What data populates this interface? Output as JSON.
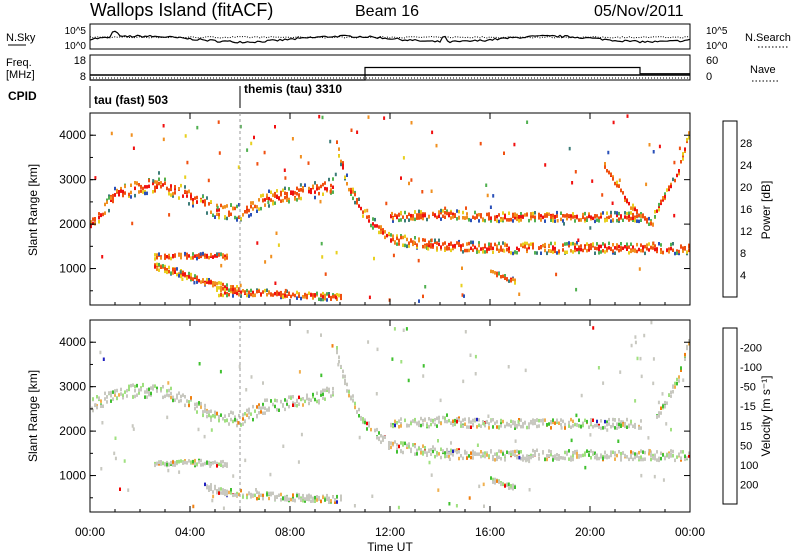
{
  "header": {
    "station": "Wallops Island (fitACF)",
    "beam": "Beam 16",
    "date": "05/Nov/2011"
  },
  "top_panel": {
    "left_label": "N.Sky",
    "right_label": "N.Search",
    "left_ticks": [
      "10^5",
      "10^0"
    ],
    "right_ticks": [
      "10^5",
      "10^0"
    ]
  },
  "freq_panel": {
    "left_label_line1": "Freq.",
    "left_label_line2": "[MHz]",
    "right_label": "Nave",
    "left_ticks": [
      "18",
      "8"
    ],
    "right_ticks": [
      "60",
      "0"
    ],
    "freq_mhz_level": 10,
    "nave_steps": [
      {
        "from_hour": 0.0,
        "to_hour": 11.0,
        "nave": 0
      },
      {
        "from_hour": 11.0,
        "to_hour": 22.0,
        "nave": 30
      },
      {
        "from_hour": 22.0,
        "to_hour": 24.0,
        "nave": 15
      }
    ]
  },
  "cpid": {
    "label": "CPID",
    "modes": [
      {
        "name": "tau (fast) 503",
        "start_hour": 0.0
      },
      {
        "name": "themis (tau) 3310",
        "start_hour": 6.0
      }
    ]
  },
  "chart_data": [
    {
      "type": "heatmap",
      "title": "Power",
      "ylabel": "Slant Range [km]",
      "yticks": [
        "1000",
        "2000",
        "3000",
        "4000"
      ],
      "ylim": [
        180,
        4500
      ],
      "xlim": [
        0,
        24
      ],
      "colorbar_label": "Power [dB]",
      "colorbar_ticks": [
        "4",
        "8",
        "12",
        "16",
        "20",
        "24",
        "28"
      ],
      "colors": [
        "#1010f0",
        "#2a50b8",
        "#3c7c78",
        "#50b050",
        "#e8d020",
        "#f09020",
        "#f05010",
        "#f01010"
      ],
      "echo_bands": [
        {
          "x": [
            0.0,
            1.0,
            2.0,
            3.0,
            4.0,
            5.0,
            6.0,
            7.0,
            8.0,
            9.0,
            9.7
          ],
          "y": [
            2000,
            2700,
            2900,
            2900,
            2650,
            2350,
            2300,
            2600,
            2700,
            2800,
            2900
          ],
          "width": 350
        },
        {
          "x": [
            2.5,
            3.5,
            4.5,
            5.5
          ],
          "y": [
            1300,
            1320,
            1320,
            1300
          ],
          "width": 120
        },
        {
          "x": [
            2.5,
            3.5,
            4.5,
            5.5,
            6.0
          ],
          "y": [
            1100,
            950,
            750,
            600,
            550
          ],
          "width": 150
        },
        {
          "x": [
            5.0,
            7.0,
            9.0,
            10.0
          ],
          "y": [
            500,
            480,
            420,
            380
          ],
          "width": 150
        },
        {
          "x": [
            9.8,
            10.3,
            11.0,
            12.0,
            14.0,
            16.0,
            18.0,
            20.0,
            22.0,
            23.0,
            24.0
          ],
          "y": [
            3900,
            2900,
            2200,
            1700,
            1550,
            1500,
            1500,
            1500,
            1500,
            1480,
            1500
          ],
          "width": 240
        },
        {
          "x": [
            12.0,
            14.0,
            16.0,
            18.0,
            20.0,
            22.0
          ],
          "y": [
            2200,
            2250,
            2200,
            2200,
            2200,
            2200
          ],
          "width": 200
        },
        {
          "x": [
            16.0,
            16.5,
            17.0
          ],
          "y": [
            950,
            850,
            750
          ],
          "width": 100
        },
        {
          "x": [
            20.5,
            21.5,
            22.5
          ],
          "y": [
            3400,
            2500,
            2000
          ],
          "width": 150
        },
        {
          "x": [
            22.5,
            23.5,
            24.0
          ],
          "y": [
            2200,
            3200,
            4200
          ],
          "width": 150
        }
      ]
    },
    {
      "type": "heatmap",
      "title": "Velocity",
      "ylabel": "Slant Range [km]",
      "yticks": [
        "1000",
        "2000",
        "3000",
        "4000"
      ],
      "ylim": [
        180,
        4500
      ],
      "xlim": [
        0,
        24
      ],
      "xticks": [
        "00:00",
        "04:00",
        "08:00",
        "12:00",
        "16:00",
        "20:00",
        "00:00"
      ],
      "xlabel": "Time UT",
      "colorbar_label": "Velocity [m s⁻¹]",
      "colorbar_ticks": [
        "200",
        "100",
        "50",
        "15",
        "-15",
        "-50",
        "-100",
        "-200"
      ],
      "colors": [
        "#2020c0",
        "#208050",
        "#40c030",
        "#a0e080",
        "#c8c8c0",
        "#f0b050",
        "#f08010",
        "#f03010",
        "#f00000"
      ],
      "echo_bands": [
        {
          "x": [
            0.0,
            1.0,
            2.0,
            3.0,
            4.0,
            5.0,
            6.0,
            7.0,
            8.0,
            9.0,
            9.7
          ],
          "y": [
            2600,
            2900,
            2950,
            2900,
            2650,
            2350,
            2300,
            2600,
            2700,
            2800,
            2900
          ],
          "width": 300
        },
        {
          "x": [
            2.5,
            3.5,
            4.5,
            5.5
          ],
          "y": [
            1300,
            1320,
            1320,
            1300
          ],
          "width": 120
        },
        {
          "x": [
            4.5,
            5.5,
            6.5,
            8.0,
            10.0
          ],
          "y": [
            800,
            650,
            600,
            550,
            500
          ],
          "width": 150
        },
        {
          "x": [
            9.8,
            10.3,
            11.0,
            12.0,
            14.0,
            16.0,
            18.0,
            20.0,
            22.0,
            23.0,
            24.0
          ],
          "y": [
            3900,
            2900,
            2200,
            1700,
            1550,
            1500,
            1500,
            1500,
            1500,
            1480,
            1500
          ],
          "width": 220
        },
        {
          "x": [
            12.0,
            14.0,
            16.0,
            18.0,
            20.0,
            22.0
          ],
          "y": [
            2200,
            2250,
            2200,
            2200,
            2200,
            2200
          ],
          "width": 200
        },
        {
          "x": [
            16.0,
            16.5,
            17.0
          ],
          "y": [
            950,
            850,
            750
          ],
          "width": 100
        },
        {
          "x": [
            22.5,
            23.5,
            24.0
          ],
          "y": [
            2200,
            3200,
            4200
          ],
          "width": 150
        }
      ]
    }
  ]
}
